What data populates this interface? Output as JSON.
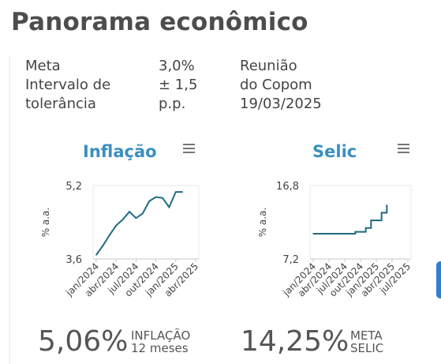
{
  "page": {
    "title": "Panorama econômico"
  },
  "meta": {
    "labels": [
      "Meta",
      "Intervalo de",
      "tolerância"
    ],
    "values": [
      "3,0%",
      "± 1,5",
      "p.p."
    ],
    "meeting": [
      "Reunião",
      "do Copom",
      "19/03/2025"
    ]
  },
  "icons": {
    "menu": "hamburger-menu-icon"
  },
  "colors": {
    "title_blue": "#3a8fc1",
    "line": "#1f6b7f",
    "side_tab": "#2f7fd1"
  },
  "inflacao": {
    "title": "Inflação",
    "value": "5,06%",
    "caption": [
      "INFLAÇÃO",
      "12 meses"
    ]
  },
  "selic": {
    "title": "Selic",
    "value": "14,25%",
    "caption": [
      "META",
      "SELIC"
    ]
  },
  "chart_data": [
    {
      "type": "line",
      "title": "Inflação",
      "ylabel": "% a.a.",
      "y_ticks": [
        "5,2",
        "3,6"
      ],
      "ylim": [
        3.6,
        5.2
      ],
      "x_ticks": [
        "jan/2024",
        "abr/2024",
        "jul/2024",
        "out/2024",
        "jan/2025",
        "abr/2025"
      ],
      "x": [
        "2024-01",
        "2024-02",
        "2024-03",
        "2024-04",
        "2024-05",
        "2024-06",
        "2024-07",
        "2024-08",
        "2024-09",
        "2024-10",
        "2024-11",
        "2024-12",
        "2025-01",
        "2025-02"
      ],
      "values": [
        3.69,
        3.89,
        4.12,
        4.33,
        4.46,
        4.63,
        4.49,
        4.59,
        4.86,
        4.95,
        4.93,
        4.73,
        5.06,
        5.06
      ],
      "grid": false
    },
    {
      "type": "line",
      "title": "Selic",
      "ylabel": "% a.a.",
      "y_ticks": [
        "16,8",
        "7,2"
      ],
      "ylim": [
        7.2,
        16.8
      ],
      "x_ticks": [
        "jan/2024",
        "abr/2024",
        "jul/2024",
        "out/2024",
        "jan/2025",
        "abr/2025",
        "jul/2025"
      ],
      "x": [
        "2024-01",
        "2024-02",
        "2024-03",
        "2024-04",
        "2024-05",
        "2024-06",
        "2024-07",
        "2024-08",
        "2024-09",
        "2024-10",
        "2024-11",
        "2024-12",
        "2025-01",
        "2025-02",
        "2025-03"
      ],
      "values": [
        10.5,
        10.5,
        10.5,
        10.5,
        10.5,
        10.5,
        10.5,
        10.5,
        10.75,
        10.75,
        11.25,
        12.25,
        12.25,
        13.25,
        14.25
      ],
      "step": true,
      "grid": false
    }
  ]
}
